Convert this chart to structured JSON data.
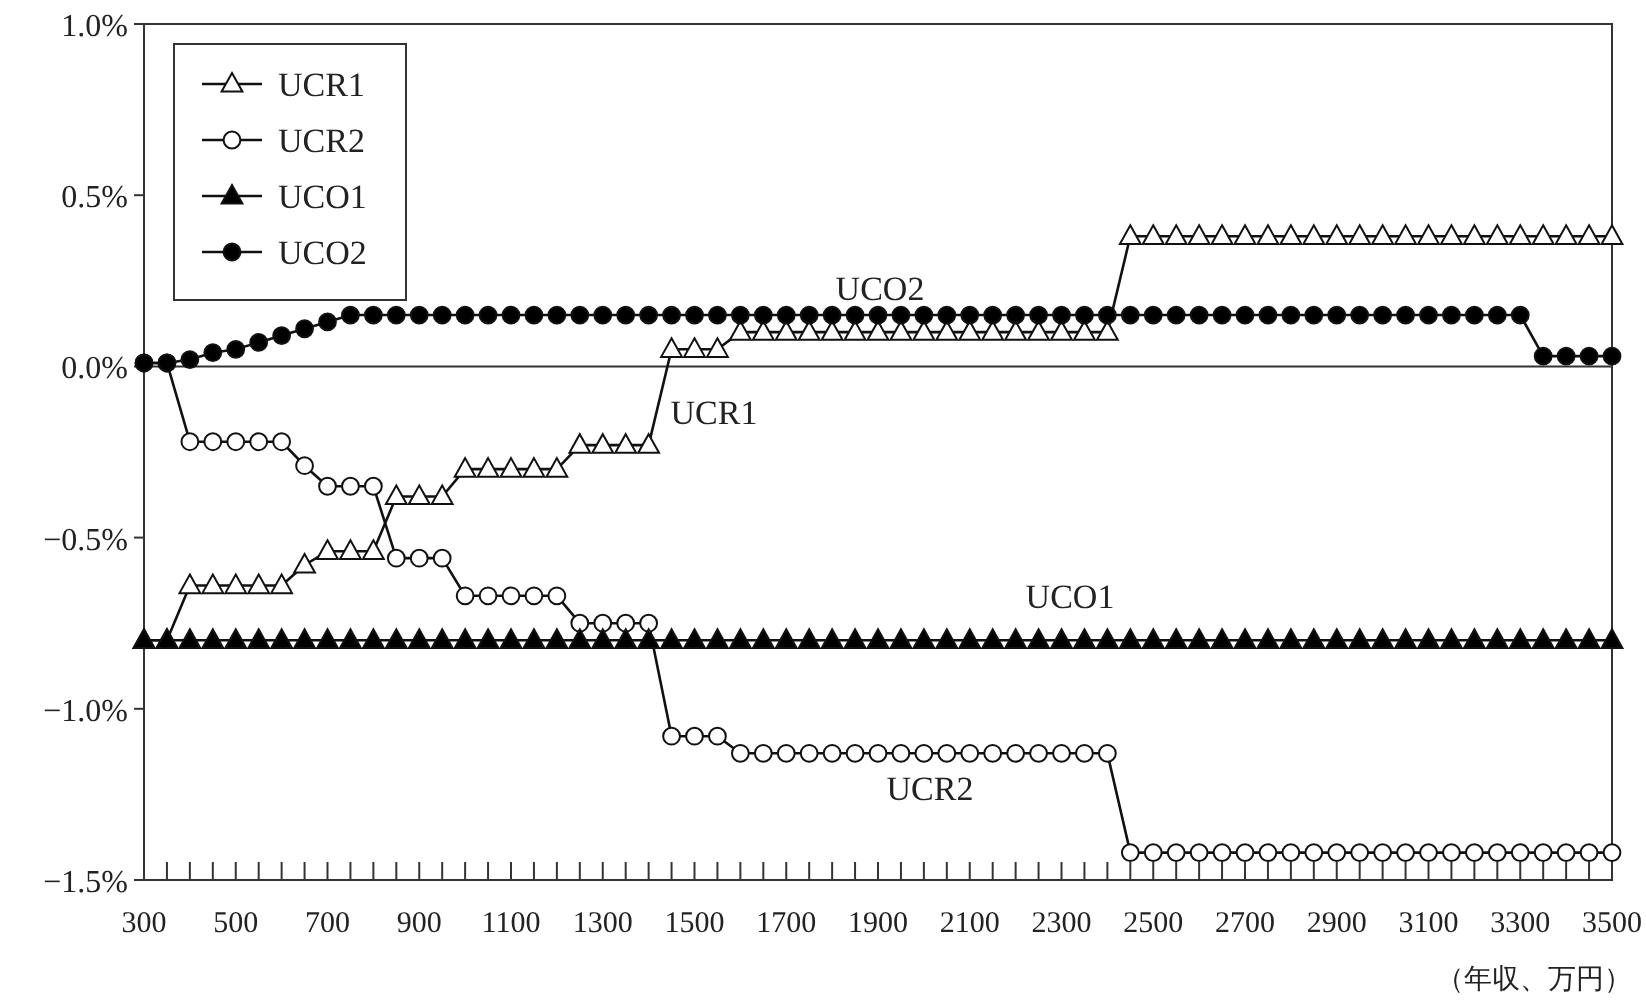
{
  "chart_data": {
    "type": "line",
    "xlabel": "（年収、万円）",
    "x": [
      300,
      350,
      400,
      450,
      500,
      550,
      600,
      650,
      700,
      750,
      800,
      850,
      900,
      950,
      1000,
      1050,
      1100,
      1150,
      1200,
      1250,
      1300,
      1350,
      1400,
      1450,
      1500,
      1550,
      1600,
      1650,
      1700,
      1750,
      1800,
      1850,
      1900,
      1950,
      2000,
      2050,
      2100,
      2150,
      2200,
      2250,
      2300,
      2350,
      2400,
      2450,
      2500,
      2550,
      2600,
      2650,
      2700,
      2750,
      2800,
      2850,
      2900,
      2950,
      3000,
      3050,
      3100,
      3150,
      3200,
      3250,
      3300,
      3350,
      3400,
      3450,
      3500
    ],
    "series": [
      {
        "name": "UCR1",
        "color": "#ffffff",
        "marker": "triangle",
        "values": [
          -0.8,
          -0.8,
          -0.64,
          -0.64,
          -0.64,
          -0.64,
          -0.64,
          -0.58,
          -0.54,
          -0.54,
          -0.54,
          -0.38,
          -0.38,
          -0.38,
          -0.3,
          -0.3,
          -0.3,
          -0.3,
          -0.3,
          -0.23,
          -0.23,
          -0.23,
          -0.23,
          0.05,
          0.05,
          0.05,
          0.1,
          0.1,
          0.1,
          0.1,
          0.1,
          0.1,
          0.1,
          0.1,
          0.1,
          0.1,
          0.1,
          0.1,
          0.1,
          0.1,
          0.1,
          0.1,
          0.1,
          0.38,
          0.38,
          0.38,
          0.38,
          0.38,
          0.38,
          0.38,
          0.38,
          0.38,
          0.38,
          0.38,
          0.38,
          0.38,
          0.38,
          0.38,
          0.38,
          0.38,
          0.38,
          0.38,
          0.38,
          0.38,
          0.38
        ]
      },
      {
        "name": "UCR2",
        "color": "#ffffff",
        "marker": "circle",
        "values": [
          0.01,
          0.01,
          -0.22,
          -0.22,
          -0.22,
          -0.22,
          -0.22,
          -0.29,
          -0.35,
          -0.35,
          -0.35,
          -0.56,
          -0.56,
          -0.56,
          -0.67,
          -0.67,
          -0.67,
          -0.67,
          -0.67,
          -0.75,
          -0.75,
          -0.75,
          -0.75,
          -1.08,
          -1.08,
          -1.08,
          -1.13,
          -1.13,
          -1.13,
          -1.13,
          -1.13,
          -1.13,
          -1.13,
          -1.13,
          -1.13,
          -1.13,
          -1.13,
          -1.13,
          -1.13,
          -1.13,
          -1.13,
          -1.13,
          -1.13,
          -1.42,
          -1.42,
          -1.42,
          -1.42,
          -1.42,
          -1.42,
          -1.42,
          -1.42,
          -1.42,
          -1.42,
          -1.42,
          -1.42,
          -1.42,
          -1.42,
          -1.42,
          -1.42,
          -1.42,
          -1.42,
          -1.42,
          -1.42,
          -1.42,
          -1.42
        ]
      },
      {
        "name": "UCO1",
        "color": "#000000",
        "marker": "triangle",
        "values": [
          -0.8,
          -0.8,
          -0.8,
          -0.8,
          -0.8,
          -0.8,
          -0.8,
          -0.8,
          -0.8,
          -0.8,
          -0.8,
          -0.8,
          -0.8,
          -0.8,
          -0.8,
          -0.8,
          -0.8,
          -0.8,
          -0.8,
          -0.8,
          -0.8,
          -0.8,
          -0.8,
          -0.8,
          -0.8,
          -0.8,
          -0.8,
          -0.8,
          -0.8,
          -0.8,
          -0.8,
          -0.8,
          -0.8,
          -0.8,
          -0.8,
          -0.8,
          -0.8,
          -0.8,
          -0.8,
          -0.8,
          -0.8,
          -0.8,
          -0.8,
          -0.8,
          -0.8,
          -0.8,
          -0.8,
          -0.8,
          -0.8,
          -0.8,
          -0.8,
          -0.8,
          -0.8,
          -0.8,
          -0.8,
          -0.8,
          -0.8,
          -0.8,
          -0.8,
          -0.8,
          -0.8,
          -0.8,
          -0.8,
          -0.8,
          -0.8
        ]
      },
      {
        "name": "UCO2",
        "color": "#000000",
        "marker": "circle",
        "values": [
          0.01,
          0.01,
          0.02,
          0.04,
          0.05,
          0.07,
          0.09,
          0.11,
          0.13,
          0.15,
          0.15,
          0.15,
          0.15,
          0.15,
          0.15,
          0.15,
          0.15,
          0.15,
          0.15,
          0.15,
          0.15,
          0.15,
          0.15,
          0.15,
          0.15,
          0.15,
          0.15,
          0.15,
          0.15,
          0.15,
          0.15,
          0.15,
          0.15,
          0.15,
          0.15,
          0.15,
          0.15,
          0.15,
          0.15,
          0.15,
          0.15,
          0.15,
          0.15,
          0.15,
          0.15,
          0.15,
          0.15,
          0.15,
          0.15,
          0.15,
          0.15,
          0.15,
          0.15,
          0.15,
          0.15,
          0.15,
          0.15,
          0.15,
          0.15,
          0.15,
          0.15,
          0.03,
          0.03,
          0.03,
          0.03
        ]
      }
    ],
    "annotations": [
      "UCO2",
      "UCR1",
      "UCO1",
      "UCR2"
    ],
    "ref_lines": [
      {
        "axis": "y",
        "value": 0
      }
    ],
    "xlim": [
      300,
      3500
    ],
    "xticks": [
      300,
      {
        "value": 350,
        "label": null
      },
      {
        "value": 400,
        "label": null
      },
      {
        "value": 450,
        "label": null
      },
      500,
      {
        "value": 550,
        "label": null
      },
      {
        "value": 600,
        "label": null
      },
      {
        "value": 650,
        "label": null
      },
      700,
      {
        "value": 750,
        "label": null
      },
      {
        "value": 800,
        "label": null
      },
      {
        "value": 850,
        "label": null
      },
      900,
      {
        "value": 950,
        "label": null
      },
      {
        "value": 1000,
        "label": null
      },
      {
        "value": 1050,
        "label": null
      },
      1100,
      {
        "value": 1150,
        "label": null
      },
      {
        "value": 1200,
        "label": null
      },
      {
        "value": 1250,
        "label": null
      },
      1300,
      {
        "value": 1350,
        "label": null
      },
      {
        "value": 1400,
        "label": null
      },
      {
        "value": 1450,
        "label": null
      },
      1500,
      {
        "value": 1550,
        "label": null
      },
      {
        "value": 1600,
        "label": null
      },
      {
        "value": 1650,
        "label": null
      },
      1700,
      {
        "value": 1750,
        "label": null
      },
      {
        "value": 1800,
        "label": null
      },
      {
        "value": 1850,
        "label": null
      },
      1900,
      {
        "value": 1950,
        "label": null
      },
      {
        "value": 2000,
        "label": null
      },
      {
        "value": 2050,
        "label": null
      },
      2100,
      {
        "value": 2150,
        "label": null
      },
      {
        "value": 2200,
        "label": null
      },
      {
        "value": 2250,
        "label": null
      },
      2300,
      {
        "value": 2350,
        "label": null
      },
      {
        "value": 2400,
        "label": null
      },
      {
        "value": 2450,
        "label": null
      },
      2500,
      {
        "value": 2550,
        "label": null
      },
      {
        "value": 2600,
        "label": null
      },
      {
        "value": 2650,
        "label": null
      },
      2700,
      {
        "value": 2750,
        "label": null
      },
      {
        "value": 2800,
        "label": null
      },
      {
        "value": 2850,
        "label": null
      },
      2900,
      {
        "value": 2950,
        "label": null
      },
      {
        "value": 3000,
        "label": null
      },
      {
        "value": 3050,
        "label": null
      },
      3100,
      {
        "value": 3150,
        "label": null
      },
      {
        "value": 3200,
        "label": null
      },
      {
        "value": 3250,
        "label": null
      },
      3300,
      {
        "value": 3350,
        "label": null
      },
      {
        "value": 3400,
        "label": null
      },
      {
        "value": 3450,
        "label": null
      },
      3500
    ],
    "ylim": [
      -1.5,
      1.0
    ],
    "yticks": [
      {
        "value": -1.5,
        "label": "−1.5%"
      },
      {
        "value": -1.0,
        "label": "−1.0%"
      },
      {
        "value": -0.5,
        "label": "−0.5%"
      },
      {
        "value": 0,
        "label": "0.0%"
      },
      {
        "value": 0.5,
        "label": "0.5%"
      },
      {
        "value": 1.0,
        "label": "1.0%"
      }
    ],
    "grid": false,
    "legend": "top left",
    "line_style": "solid"
  }
}
